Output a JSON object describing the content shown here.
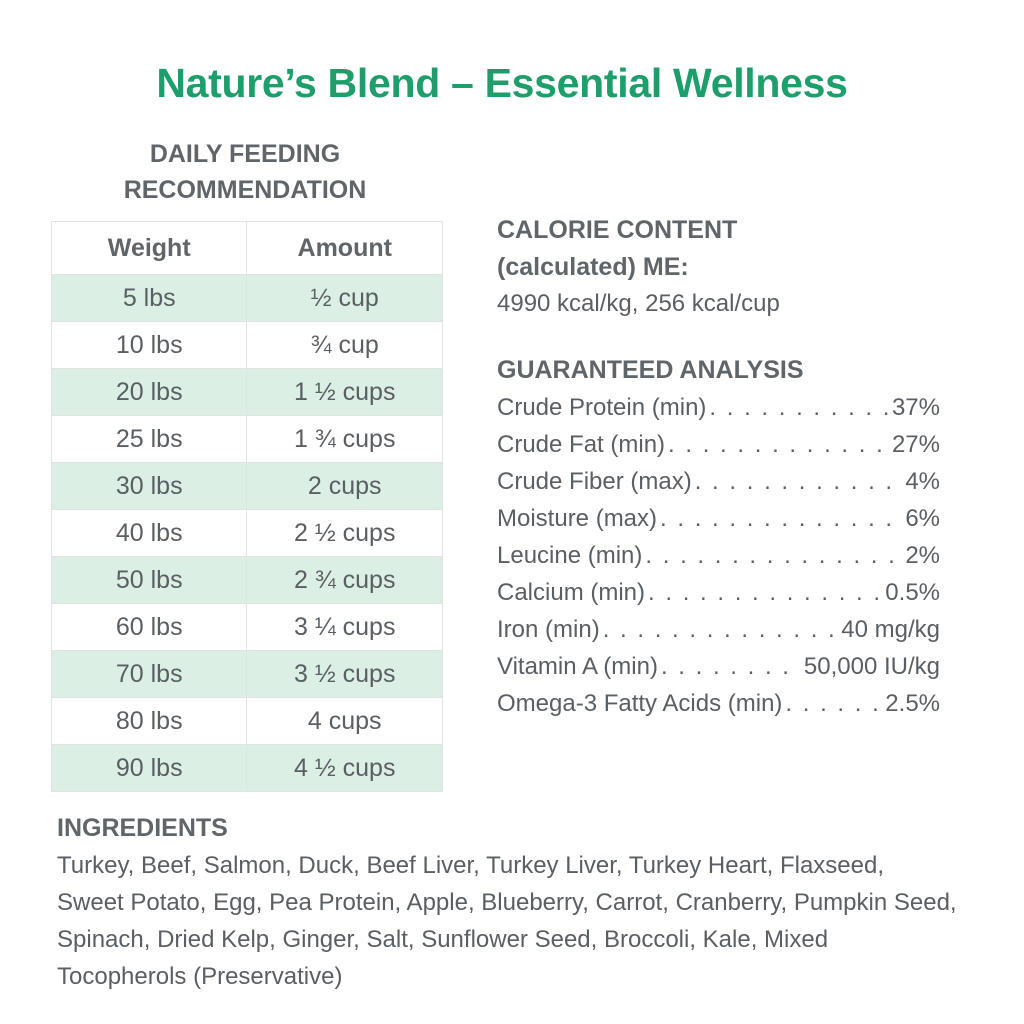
{
  "title": "Nature’s Blend – Essential Wellness",
  "feeding": {
    "heading_line1": "DAILY FEEDING",
    "heading_line2": "RECOMMENDATION",
    "col_weight": "Weight",
    "col_amount": "Amount",
    "rows": [
      {
        "weight": "5 lbs",
        "amount": "½ cup"
      },
      {
        "weight": "10 lbs",
        "amount": "¾ cup"
      },
      {
        "weight": "20 lbs",
        "amount": "1 ½ cups"
      },
      {
        "weight": "25 lbs",
        "amount": "1 ¾ cups"
      },
      {
        "weight": "30 lbs",
        "amount": "2 cups"
      },
      {
        "weight": "40 lbs",
        "amount": "2 ½ cups"
      },
      {
        "weight": "50 lbs",
        "amount": "2 ¾ cups"
      },
      {
        "weight": "60 lbs",
        "amount": "3 ¼ cups"
      },
      {
        "weight": "70 lbs",
        "amount": "3 ½ cups"
      },
      {
        "weight": "80 lbs",
        "amount": "4 cups"
      },
      {
        "weight": "90 lbs",
        "amount": "4 ½ cups"
      }
    ]
  },
  "calorie": {
    "heading_line1": "CALORIE CONTENT",
    "heading_line2": "(calculated) ME:",
    "value": "4990 kcal/kg, 256 kcal/cup"
  },
  "analysis": {
    "heading": "GUARANTEED ANALYSIS",
    "rows": [
      {
        "label": "Crude Protein (min)",
        "value": "37%"
      },
      {
        "label": "Crude Fat (min)",
        "value": "27%"
      },
      {
        "label": "Crude Fiber (max)",
        "value": "4%"
      },
      {
        "label": "Moisture (max)",
        "value": "6%"
      },
      {
        "label": "Leucine (min)",
        "value": "2%"
      },
      {
        "label": "Calcium (min)",
        "value": "0.5%"
      },
      {
        "label": "Iron (min)",
        "value": "40 mg/kg"
      },
      {
        "label": "Vitamin A (min)",
        "value": "50,000 IU/kg"
      },
      {
        "label": "Omega-3 Fatty Acids (min)",
        "value": "2.5%"
      }
    ]
  },
  "ingredients": {
    "heading": "INGREDIENTS",
    "text": "Turkey, Beef, Salmon, Duck, Beef Liver, Turkey Liver, Turkey Heart, Flaxseed, Sweet Potato, Egg, Pea Protein, Apple, Blueberry, Carrot, Cranberry, Pumpkin Seed, Spinach, Dried Kelp, Ginger, Salt, Sunflower Seed, Broccoli, Kale, Mixed Tocopherols (Preservative)"
  },
  "colors": {
    "title_green": "#1e9e6a",
    "row_alt": "#dbefe4",
    "text_gray": "#5a5f63"
  }
}
